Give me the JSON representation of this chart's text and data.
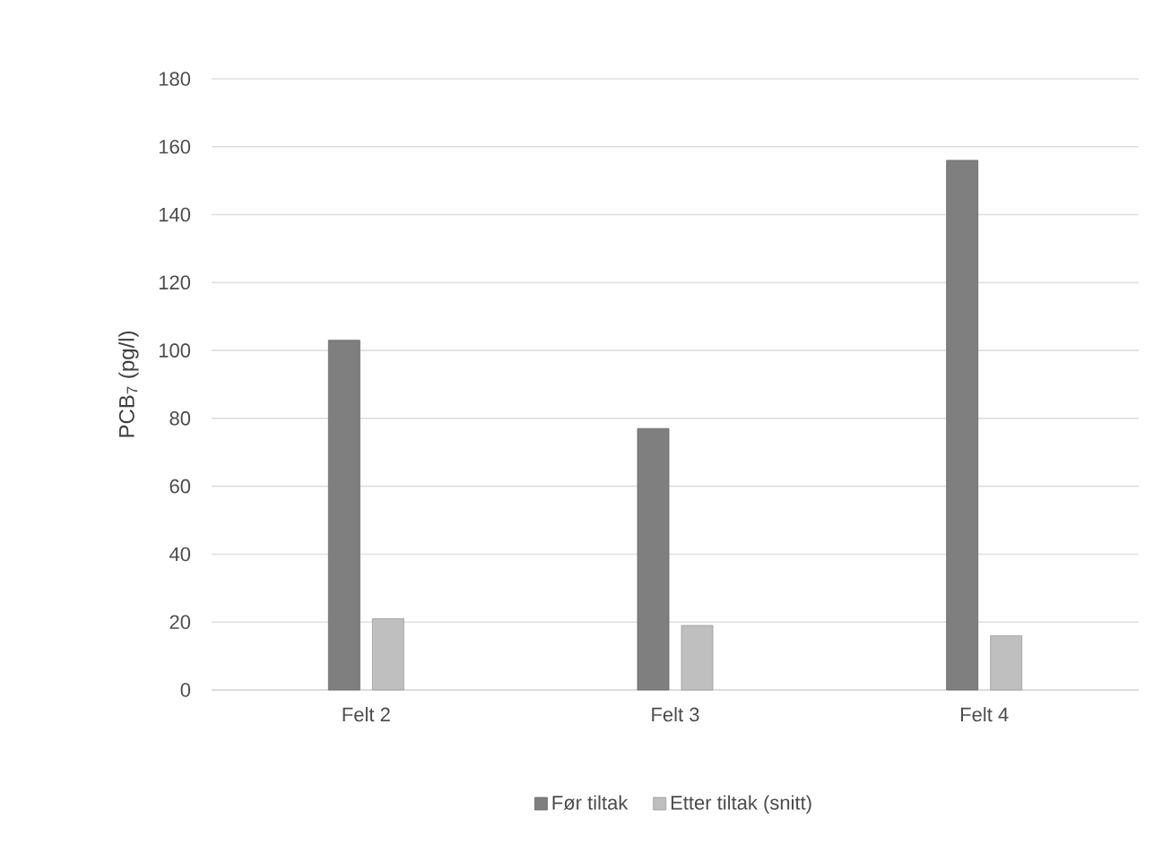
{
  "chart_data": {
    "type": "bar",
    "ylabel": "PCB$_{7}$ (pg/l)",
    "categories": [
      "Felt 2",
      "Felt 3",
      "Felt 4"
    ],
    "series": [
      {
        "name": "Før tiltak",
        "color": "#7f7f7f",
        "values": [
          103,
          77,
          156
        ]
      },
      {
        "name": "Etter tiltak (snitt)",
        "color": "#bfbfbf",
        "values": [
          21,
          19,
          16
        ]
      }
    ],
    "ylim": [
      0,
      180
    ],
    "yticks": [
      0,
      20,
      40,
      60,
      80,
      100,
      120,
      140,
      160,
      180
    ],
    "grid": "y",
    "legend": "bottom"
  }
}
